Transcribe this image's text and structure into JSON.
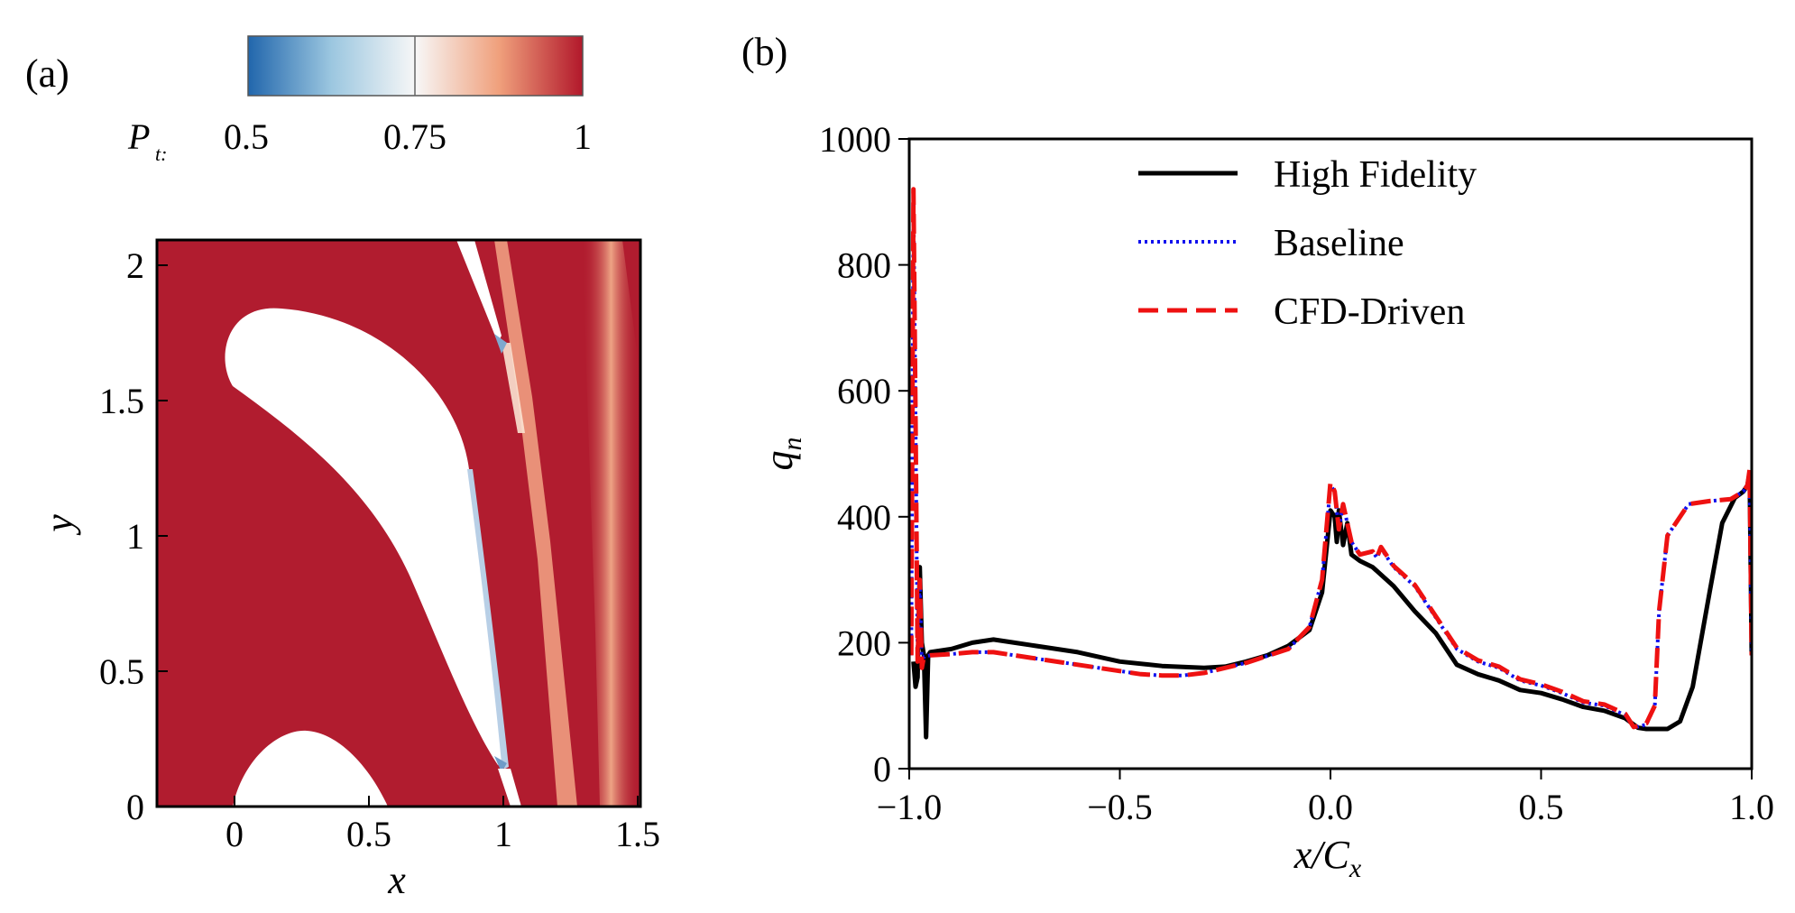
{
  "panels": {
    "a": {
      "label": "(a)",
      "colorbar": {
        "label_main": "P",
        "label_sub": "t:",
        "ticks": [
          "0.5",
          "0.75",
          "1"
        ],
        "range": [
          0.5,
          1.0
        ],
        "colors": [
          "#2166ac",
          "#f7f7f7",
          "#b2182b"
        ]
      },
      "field": {
        "xlabel": "x",
        "ylabel": "y",
        "xlim": [
          -0.3,
          1.5
        ],
        "ylim": [
          0,
          2.1
        ],
        "xticks": [
          "0",
          "0.5",
          "1",
          "1.5"
        ],
        "yticks": [
          "0",
          "0.5",
          "1",
          "1.5",
          "2"
        ],
        "background_color": "#b11c2f",
        "wake_color": "#f3a585",
        "blade_color": "#ffffff"
      }
    },
    "b": {
      "label": "(b)",
      "ylabel_main": "q",
      "ylabel_sub": "n",
      "xlabel_main": "x/C",
      "xlabel_sub": "x"
    }
  },
  "chart_data": {
    "type": "line",
    "xlabel": "x/C_x",
    "ylabel": "q_n",
    "xlim": [
      -1.0,
      1.0
    ],
    "ylim": [
      0,
      1000
    ],
    "xticks": [
      "−1.0",
      "−0.5",
      "0.0",
      "0.5",
      "1.0"
    ],
    "yticks": [
      "0",
      "200",
      "400",
      "600",
      "800",
      "1000"
    ],
    "grid": false,
    "legend_position": "top-center",
    "series": [
      {
        "name": "High Fidelity",
        "color": "#000000",
        "style": "solid",
        "points": [
          [
            -0.99,
            170
          ],
          [
            -0.985,
            130
          ],
          [
            -0.98,
            145
          ],
          [
            -0.975,
            320
          ],
          [
            -0.97,
            200
          ],
          [
            -0.965,
            180
          ],
          [
            -0.96,
            50
          ],
          [
            -0.955,
            180
          ],
          [
            -0.95,
            185
          ],
          [
            -0.9,
            190
          ],
          [
            -0.85,
            200
          ],
          [
            -0.8,
            205
          ],
          [
            -0.75,
            200
          ],
          [
            -0.7,
            195
          ],
          [
            -0.6,
            185
          ],
          [
            -0.5,
            170
          ],
          [
            -0.4,
            163
          ],
          [
            -0.3,
            160
          ],
          [
            -0.25,
            162
          ],
          [
            -0.2,
            170
          ],
          [
            -0.15,
            180
          ],
          [
            -0.1,
            195
          ],
          [
            -0.05,
            220
          ],
          [
            -0.02,
            280
          ],
          [
            0.0,
            410
          ],
          [
            0.01,
            400
          ],
          [
            0.015,
            360
          ],
          [
            0.02,
            410
          ],
          [
            0.03,
            355
          ],
          [
            0.04,
            390
          ],
          [
            0.05,
            340
          ],
          [
            0.07,
            330
          ],
          [
            0.1,
            320
          ],
          [
            0.15,
            290
          ],
          [
            0.2,
            250
          ],
          [
            0.25,
            215
          ],
          [
            0.3,
            165
          ],
          [
            0.35,
            150
          ],
          [
            0.4,
            140
          ],
          [
            0.45,
            125
          ],
          [
            0.5,
            120
          ],
          [
            0.55,
            110
          ],
          [
            0.6,
            98
          ],
          [
            0.65,
            92
          ],
          [
            0.7,
            80
          ],
          [
            0.73,
            65
          ],
          [
            0.75,
            63
          ],
          [
            0.8,
            63
          ],
          [
            0.83,
            75
          ],
          [
            0.86,
            130
          ],
          [
            0.9,
            280
          ],
          [
            0.93,
            390
          ],
          [
            0.96,
            430
          ],
          [
            0.98,
            440
          ],
          [
            0.99,
            450
          ],
          [
            0.995,
            470
          ],
          [
            1.0,
            180
          ]
        ]
      },
      {
        "name": "Baseline",
        "color": "#1010ee",
        "style": "dotted",
        "points": [
          [
            -0.995,
            180
          ],
          [
            -0.99,
            910
          ],
          [
            -0.985,
            560
          ],
          [
            -0.98,
            170
          ],
          [
            -0.975,
            300
          ],
          [
            -0.97,
            160
          ],
          [
            -0.965,
            178
          ],
          [
            -0.95,
            180
          ],
          [
            -0.9,
            182
          ],
          [
            -0.85,
            185
          ],
          [
            -0.8,
            185
          ],
          [
            -0.7,
            175
          ],
          [
            -0.6,
            165
          ],
          [
            -0.5,
            155
          ],
          [
            -0.45,
            150
          ],
          [
            -0.4,
            148
          ],
          [
            -0.35,
            148
          ],
          [
            -0.3,
            152
          ],
          [
            -0.2,
            168
          ],
          [
            -0.1,
            190
          ],
          [
            -0.05,
            225
          ],
          [
            -0.02,
            300
          ],
          [
            0.0,
            450
          ],
          [
            0.01,
            440
          ],
          [
            0.02,
            380
          ],
          [
            0.03,
            420
          ],
          [
            0.05,
            360
          ],
          [
            0.07,
            340
          ],
          [
            0.1,
            345
          ],
          [
            0.11,
            335
          ],
          [
            0.12,
            350
          ],
          [
            0.15,
            320
          ],
          [
            0.2,
            290
          ],
          [
            0.25,
            240
          ],
          [
            0.3,
            190
          ],
          [
            0.35,
            170
          ],
          [
            0.4,
            160
          ],
          [
            0.45,
            140
          ],
          [
            0.5,
            132
          ],
          [
            0.55,
            120
          ],
          [
            0.6,
            105
          ],
          [
            0.65,
            100
          ],
          [
            0.7,
            85
          ],
          [
            0.72,
            65
          ],
          [
            0.75,
            70
          ],
          [
            0.77,
            100
          ],
          [
            0.78,
            250
          ],
          [
            0.8,
            370
          ],
          [
            0.85,
            420
          ],
          [
            0.9,
            425
          ],
          [
            0.95,
            428
          ],
          [
            0.98,
            440
          ],
          [
            0.99,
            450
          ],
          [
            0.995,
            470
          ],
          [
            1.0,
            180
          ]
        ]
      },
      {
        "name": "CFD-Driven",
        "color": "#ee1111",
        "style": "dashed",
        "points": [
          [
            -0.995,
            180
          ],
          [
            -0.99,
            920
          ],
          [
            -0.985,
            560
          ],
          [
            -0.98,
            170
          ],
          [
            -0.975,
            300
          ],
          [
            -0.97,
            160
          ],
          [
            -0.965,
            178
          ],
          [
            -0.95,
            180
          ],
          [
            -0.9,
            182
          ],
          [
            -0.85,
            185
          ],
          [
            -0.8,
            185
          ],
          [
            -0.7,
            175
          ],
          [
            -0.6,
            165
          ],
          [
            -0.5,
            155
          ],
          [
            -0.45,
            150
          ],
          [
            -0.4,
            148
          ],
          [
            -0.35,
            148
          ],
          [
            -0.3,
            152
          ],
          [
            -0.2,
            168
          ],
          [
            -0.1,
            190
          ],
          [
            -0.05,
            225
          ],
          [
            -0.02,
            300
          ],
          [
            0.0,
            455
          ],
          [
            0.01,
            440
          ],
          [
            0.02,
            380
          ],
          [
            0.03,
            420
          ],
          [
            0.05,
            360
          ],
          [
            0.07,
            340
          ],
          [
            0.1,
            345
          ],
          [
            0.11,
            335
          ],
          [
            0.12,
            352
          ],
          [
            0.15,
            322
          ],
          [
            0.2,
            292
          ],
          [
            0.25,
            242
          ],
          [
            0.3,
            192
          ],
          [
            0.35,
            172
          ],
          [
            0.4,
            162
          ],
          [
            0.45,
            142
          ],
          [
            0.5,
            134
          ],
          [
            0.55,
            122
          ],
          [
            0.6,
            107
          ],
          [
            0.65,
            102
          ],
          [
            0.7,
            87
          ],
          [
            0.72,
            66
          ],
          [
            0.75,
            72
          ],
          [
            0.77,
            100
          ],
          [
            0.78,
            250
          ],
          [
            0.8,
            370
          ],
          [
            0.85,
            420
          ],
          [
            0.9,
            425
          ],
          [
            0.95,
            428
          ],
          [
            0.98,
            440
          ],
          [
            0.99,
            450
          ],
          [
            0.995,
            475
          ],
          [
            1.0,
            180
          ]
        ]
      }
    ]
  }
}
